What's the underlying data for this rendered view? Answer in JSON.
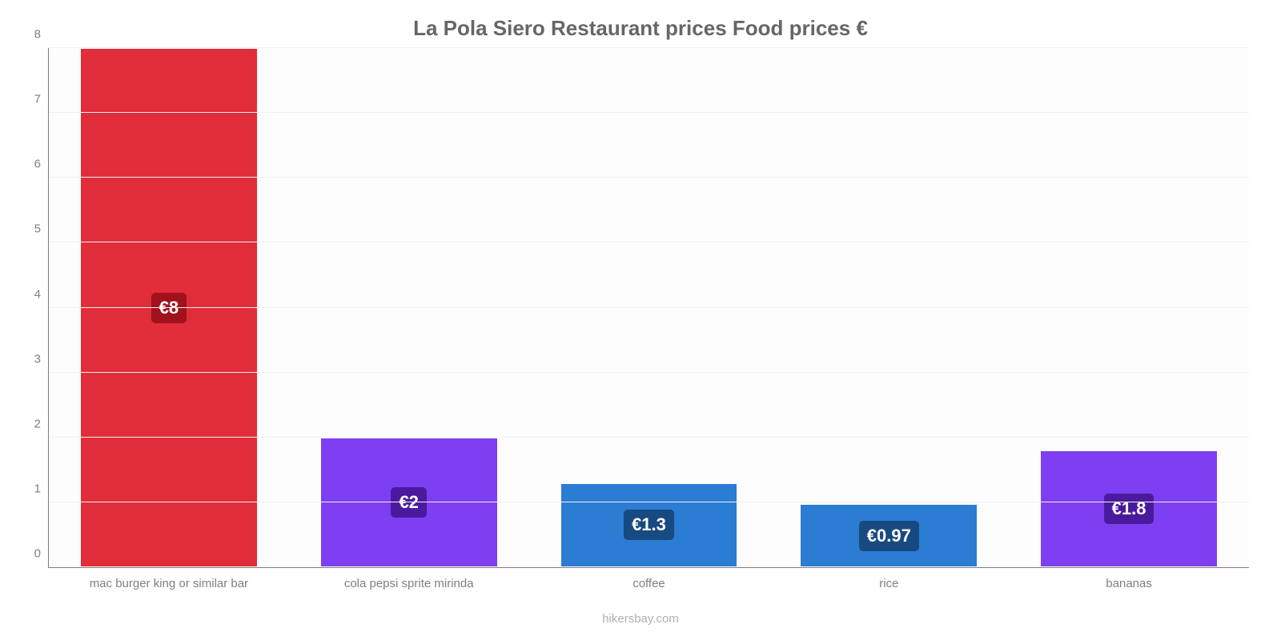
{
  "chart": {
    "type": "bar",
    "title": "La Pola Siero Restaurant prices Food prices €",
    "title_color": "#666666",
    "title_fontsize": 26,
    "background_color": "#ffffff",
    "plot_background": "#fdfdfd",
    "axis_color": "#808080",
    "grid_color": "#f0f0f0",
    "tick_label_color": "#808080",
    "tick_label_fontsize": 15,
    "ylim": [
      0,
      8
    ],
    "ytick_step": 1,
    "yticks": [
      "0",
      "1",
      "2",
      "3",
      "4",
      "5",
      "6",
      "7",
      "8"
    ],
    "bar_width_pct": 74,
    "categories": [
      "mac burger king or similar bar",
      "cola pepsi sprite mirinda",
      "coffee",
      "rice",
      "bananas"
    ],
    "values": [
      8,
      2,
      1.3,
      0.97,
      1.8
    ],
    "value_labels": [
      "€8",
      "€2",
      "€1.3",
      "€0.97",
      "€1.8"
    ],
    "bar_colors": [
      "#e12d39",
      "#7e3ff2",
      "#2b7cd3",
      "#2b7cd3",
      "#7e3ff2"
    ],
    "label_bg_colors": [
      "#a1121c",
      "#4a1a9e",
      "#174a80",
      "#174a80",
      "#4a1a9e"
    ],
    "label_text_color": "#ffffff",
    "label_fontsize": 22,
    "attribution": "hikersbay.com",
    "attribution_color": "#b0b0b0",
    "attribution_fontsize": 15
  }
}
